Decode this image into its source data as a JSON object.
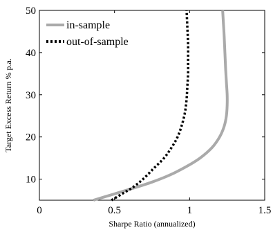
{
  "chart_data": {
    "type": "line",
    "xlabel": "Sharpe Ratio (annualized)",
    "ylabel": "Target Excess Return  % p.a.",
    "xlim": [
      0,
      1.5
    ],
    "ylim": [
      5,
      50
    ],
    "xticks": [
      0,
      0.5,
      1,
      1.5
    ],
    "xtick_labels": [
      "0",
      "0.5",
      "1",
      "1.5"
    ],
    "yticks": [
      10,
      20,
      30,
      40,
      50
    ],
    "ytick_labels": [
      "10",
      "20",
      "30",
      "40",
      "50"
    ],
    "grid": false,
    "legend_position": "top-left",
    "series": [
      {
        "name": "in-sample",
        "style": "solid",
        "color": "#aaaaaa",
        "x": [
          0.36,
          0.5,
          0.62,
          0.75,
          0.87,
          0.98,
          1.07,
          1.15,
          1.2,
          1.23,
          1.245,
          1.25,
          1.25,
          1.245,
          1.24,
          1.235,
          1.23,
          1.225,
          1.22
        ],
        "y": [
          5,
          6.5,
          7.8,
          9.3,
          11,
          13,
          15,
          17.5,
          20,
          22.5,
          25,
          27.5,
          30,
          33,
          36,
          40,
          44,
          47,
          50
        ]
      },
      {
        "name": "out-of-sample",
        "style": "dotted",
        "color": "#000000",
        "x": [
          0.48,
          0.55,
          0.62,
          0.69,
          0.76,
          0.83,
          0.88,
          0.92,
          0.95,
          0.97,
          0.98,
          0.985,
          0.99,
          0.99,
          0.99,
          0.985,
          0.98
        ],
        "y": [
          5,
          6.5,
          8,
          10,
          12.5,
          15,
          17.5,
          20,
          23,
          26,
          29,
          32,
          35,
          38,
          42,
          46,
          50
        ]
      }
    ]
  }
}
